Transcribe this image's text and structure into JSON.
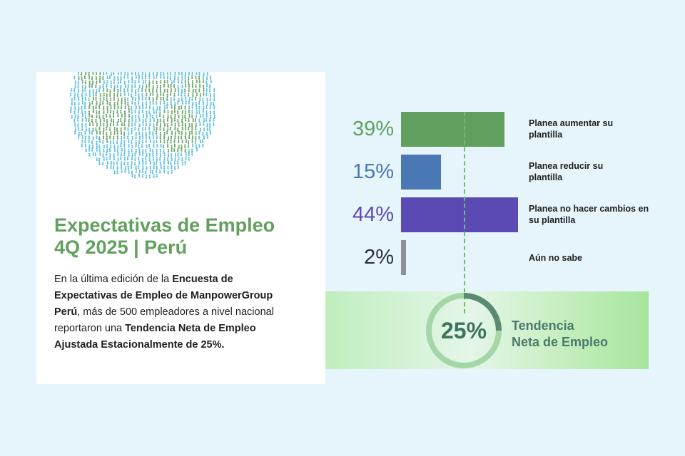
{
  "card": {
    "title_line1": "Expectativas de Empleo",
    "title_line2": "4Q 2025 | Perú",
    "body": [
      {
        "text": "En la última edición de la ",
        "bold": false
      },
      {
        "text": "Encuesta de Expectativas de Empleo de ManpowerGroup Perú",
        "bold": true
      },
      {
        "text": ", más de 500 empleadores a nivel nacional reportaron una ",
        "bold": false
      },
      {
        "text": "Tendencia Neta de Empleo Ajustada Estacionalmente de 25%.",
        "bold": true
      }
    ]
  },
  "chart_data": {
    "type": "bar",
    "orientation": "horizontal",
    "categories": [
      "Planea aumentar su plantilla",
      "Planea reducir su plantilla",
      "Planea no hacer cambios en su plantilla",
      "Aún no sabe"
    ],
    "values": [
      39,
      15,
      44,
      2
    ],
    "value_labels": [
      "39%",
      "15%",
      "44%",
      "2%"
    ],
    "colors": [
      "#62a05f",
      "#4a78b4",
      "#5b4ab4",
      "#8c8f94"
    ],
    "label_colors": [
      "#62a05f",
      "#4a78b4",
      "#5b4ab4",
      "#2a2f3f"
    ],
    "xlim": [
      0,
      44
    ],
    "grid": false
  },
  "net_employment": {
    "value": 25,
    "value_label": "25%",
    "label_line1": "Tendencia",
    "label_line2": "Neta de Empleo",
    "ring_color": "#5a8a72",
    "ring_track_color": "#a5d6a8"
  }
}
